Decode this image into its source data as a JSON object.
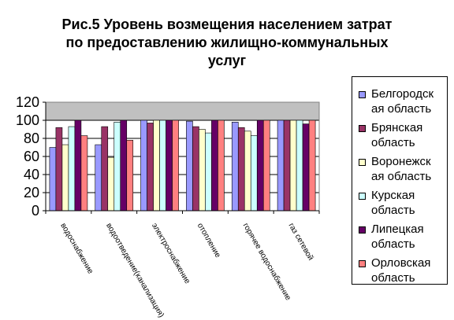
{
  "title": {
    "line1": "Рис.5 Уровень возмещения населением затрат",
    "line2": "по предоставлению жилищно-коммунальных",
    "line3": "услуг"
  },
  "chart_data": {
    "type": "bar",
    "title": "Рис.5 Уровень возмещения населением затрат по предоставлению жилищно-коммунальных услуг",
    "xlabel": "",
    "ylabel": "",
    "ylim": [
      0,
      120
    ],
    "yticks": [
      "0",
      "20",
      "40",
      "60",
      "80",
      "100",
      "120"
    ],
    "grid": true,
    "legend_position": "right",
    "categories": [
      "водоснабжение",
      "водоотведение(канализация)",
      "электроснабжение",
      "отопление",
      "горячее водоснабжение",
      "газ сетевой"
    ],
    "series": [
      {
        "name": "Белгородская область",
        "color": "#9999ff",
        "values": [
          70,
          73,
          100,
          99,
          98,
          100
        ]
      },
      {
        "name": "Брянская область",
        "color": "#993366",
        "values": [
          92,
          93,
          97,
          93,
          92,
          100
        ]
      },
      {
        "name": "Воронежская область",
        "color": "#ffffcc",
        "values": [
          73,
          59,
          100,
          90,
          88,
          100
        ]
      },
      {
        "name": "Курская область",
        "color": "#ccffff",
        "values": [
          93,
          98,
          100,
          86,
          83,
          100
        ]
      },
      {
        "name": "Липецкая область",
        "color": "#660066",
        "values": [
          100,
          100,
          100,
          100,
          100,
          96
        ]
      },
      {
        "name": "Орловская область",
        "color": "#ff8080",
        "values": [
          83,
          78,
          100,
          100,
          100,
          100
        ]
      }
    ]
  },
  "legend": {
    "items": [
      {
        "label": "Белгородск\nая область"
      },
      {
        "label": "Брянская\nобласть"
      },
      {
        "label": "Воронежск\nая область"
      },
      {
        "label": "Курская\nобласть"
      },
      {
        "label": "Липецкая\nобласть"
      },
      {
        "label": "Орловская\nобласть"
      }
    ]
  }
}
